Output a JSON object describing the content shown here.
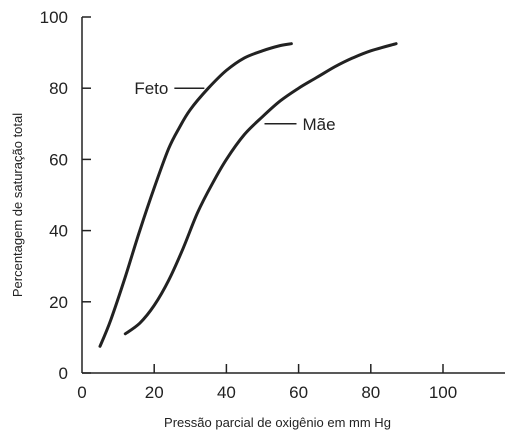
{
  "chart_data": {
    "type": "line",
    "title": "",
    "xlabel": "Pressão parcial de oxigênio em mm Hg",
    "ylabel": "Percentagem de saturação total",
    "xlim": [
      0,
      120
    ],
    "ylim": [
      0,
      100
    ],
    "x_ticks": [
      0,
      20,
      40,
      60,
      80,
      100
    ],
    "y_ticks": [
      0,
      20,
      40,
      60,
      80,
      100
    ],
    "grid": false,
    "legend": "none",
    "series": [
      {
        "name": "Feto",
        "color": "#222222",
        "x": [
          5,
          8,
          12,
          16,
          20,
          24,
          27,
          30,
          35,
          40,
          45,
          50,
          55,
          58
        ],
        "y": [
          7.5,
          15,
          27,
          40,
          52,
          63,
          69,
          74,
          80,
          85,
          88.5,
          90.5,
          92,
          92.5
        ],
        "label_anchor": [
          35,
          80
        ]
      },
      {
        "name": "Mãe",
        "color": "#222222",
        "x": [
          12,
          16,
          20,
          24,
          28,
          32,
          36,
          40,
          45,
          50,
          55,
          60,
          65,
          70,
          75,
          80,
          87
        ],
        "y": [
          11,
          14,
          19,
          26,
          35,
          45,
          53,
          60,
          67,
          72,
          76.5,
          80,
          83,
          86,
          88.5,
          90.5,
          92.5
        ],
        "label_anchor": [
          50,
          70
        ]
      }
    ]
  }
}
